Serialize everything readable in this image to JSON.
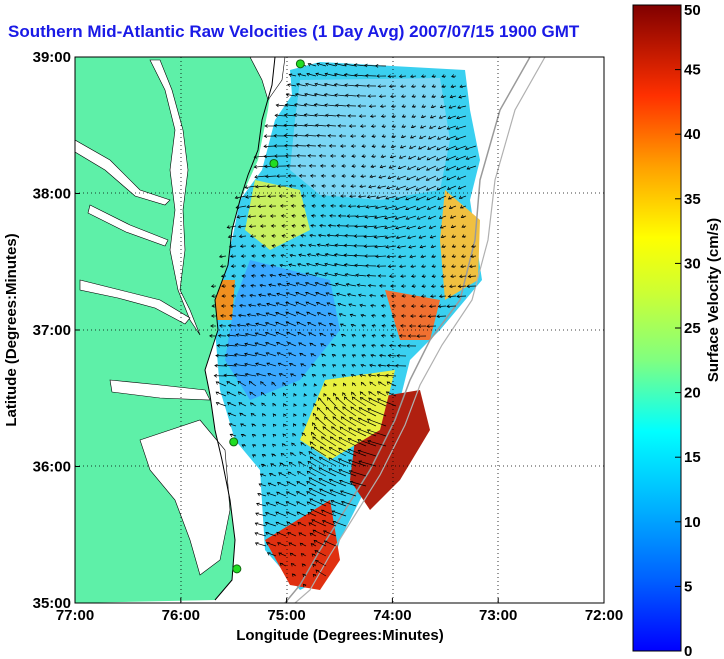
{
  "title": "Southern Mid-Atlantic Raw Velocities (1 Day Avg) 2007/07/15 1900 GMT",
  "axes": {
    "xlabel": "Longitude (Degrees:Minutes)",
    "ylabel": "Latitude (Degrees:Minutes)",
    "x_ticks": [
      "77:00",
      "76:00",
      "75:00",
      "74:00",
      "73:00",
      "72:00"
    ],
    "y_ticks": [
      "39:00",
      "38:00",
      "37:00",
      "36:00",
      "35:00"
    ]
  },
  "colorbar": {
    "label": "Surface Velocity (cm/s)",
    "ticks": [
      "0",
      "5",
      "10",
      "15",
      "20",
      "25",
      "30",
      "35",
      "40",
      "45",
      "50"
    ],
    "range": [
      0,
      50
    ]
  },
  "colors": {
    "land": "#5ef0a8",
    "water": "#ffffff",
    "title": "#1a1ae6",
    "station": "#22dd22"
  },
  "stations": [
    {
      "lon": -74.87,
      "lat": 38.95
    },
    {
      "lon": -75.12,
      "lat": 38.22
    },
    {
      "lon": -75.5,
      "lat": 36.18
    },
    {
      "lon": -75.47,
      "lat": 35.25
    }
  ]
}
